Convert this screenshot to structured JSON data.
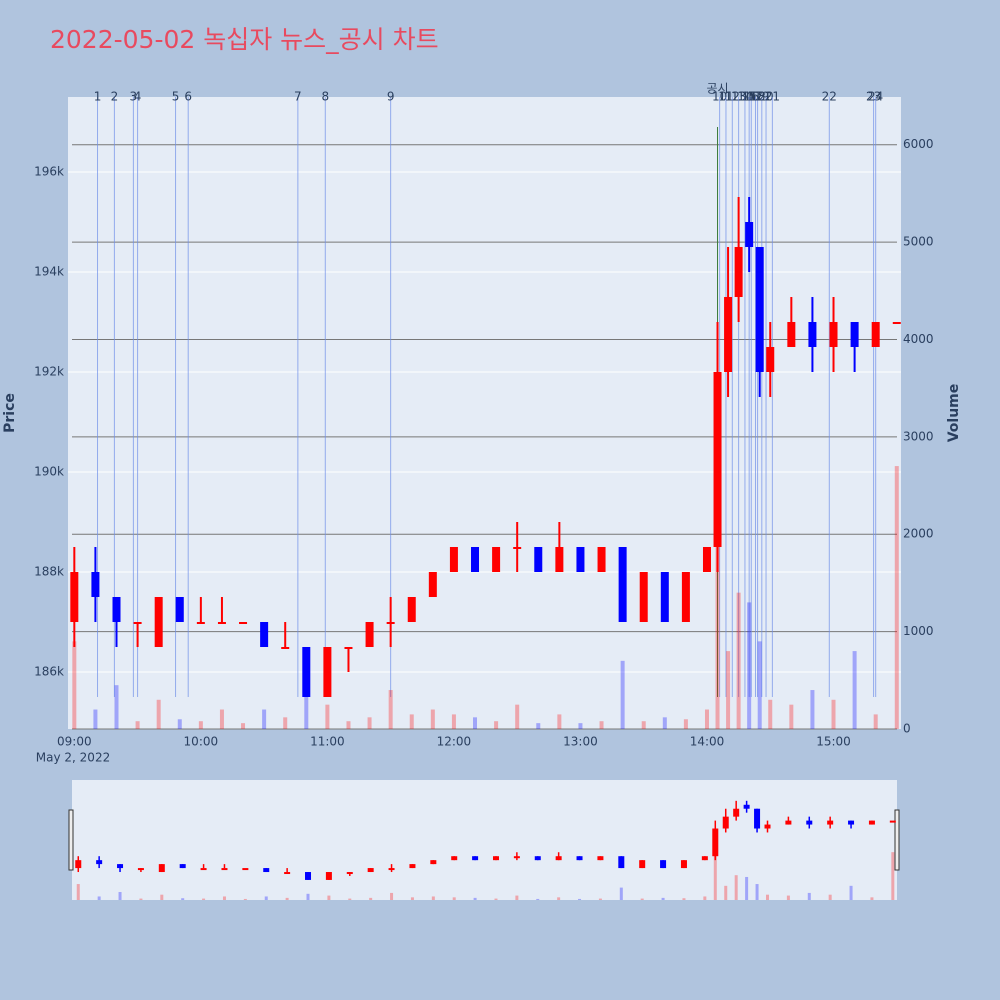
{
  "chart_data": {
    "type": "candlestick",
    "title": "2022-05-02 녹십자 뉴스_공시 차트",
    "y_label": "Price",
    "y2_label": "Volume",
    "x_date_label": "May 2, 2022",
    "increasing_color": "#ff0000",
    "decreasing_color": "#0000ff",
    "x": [
      "09:00",
      "09:10",
      "09:20",
      "09:30",
      "09:40",
      "09:50",
      "10:00",
      "10:10",
      "10:20",
      "10:30",
      "10:40",
      "10:50",
      "11:00",
      "11:10",
      "11:20",
      "11:30",
      "11:40",
      "11:50",
      "12:00",
      "12:10",
      "12:20",
      "12:30",
      "12:40",
      "12:50",
      "13:00",
      "13:10",
      "13:20",
      "13:30",
      "13:40",
      "13:50",
      "14:00",
      "14:05",
      "14:10",
      "14:15",
      "14:20",
      "14:25",
      "14:30",
      "14:40",
      "14:50",
      "15:00",
      "15:10",
      "15:20",
      "15:30"
    ],
    "open": [
      187000,
      188000,
      187500,
      187000,
      186500,
      187500,
      187000,
      187000,
      187000,
      187000,
      186500,
      186500,
      185500,
      186500,
      186500,
      187000,
      187000,
      187500,
      188000,
      188500,
      188000,
      188500,
      188500,
      188000,
      188500,
      188000,
      188500,
      187000,
      188000,
      187000,
      188000,
      188500,
      192000,
      193500,
      195000,
      194500,
      192000,
      192500,
      193000,
      192500,
      193000,
      192500,
      193000
    ],
    "high": [
      188500,
      188500,
      187500,
      187000,
      187500,
      187500,
      187500,
      187500,
      187000,
      187000,
      187000,
      186500,
      186500,
      186500,
      187000,
      187500,
      187500,
      188000,
      188500,
      188500,
      188500,
      189000,
      188500,
      189000,
      188500,
      188500,
      188500,
      188000,
      188000,
      188000,
      188500,
      193000,
      194500,
      195500,
      195500,
      194500,
      193000,
      193500,
      193500,
      193500,
      193000,
      193000,
      193000
    ],
    "low": [
      186500,
      187000,
      186500,
      186500,
      186500,
      187000,
      187000,
      187000,
      187000,
      186500,
      186500,
      185500,
      185500,
      186000,
      186500,
      186500,
      187000,
      187500,
      188000,
      188000,
      188000,
      188000,
      188000,
      188000,
      188000,
      188000,
      187000,
      187000,
      187000,
      187000,
      188000,
      188000,
      191500,
      193000,
      194000,
      191500,
      191500,
      192500,
      192000,
      192000,
      192000,
      192500,
      193000
    ],
    "close": [
      188000,
      187500,
      187000,
      187000,
      187500,
      187000,
      187000,
      187000,
      187000,
      186500,
      186500,
      185500,
      186500,
      186500,
      187000,
      187000,
      187500,
      188000,
      188500,
      188000,
      188500,
      188500,
      188000,
      188500,
      188000,
      188500,
      187000,
      188000,
      187000,
      188000,
      188500,
      192000,
      193500,
      194500,
      194500,
      192000,
      192500,
      193000,
      192500,
      193000,
      192500,
      193000,
      193000
    ],
    "volume": [
      900,
      200,
      450,
      80,
      300,
      100,
      80,
      200,
      60,
      200,
      120,
      350,
      250,
      80,
      120,
      400,
      150,
      200,
      150,
      120,
      80,
      250,
      60,
      150,
      60,
      80,
      700,
      80,
      120,
      100,
      200,
      2500,
      800,
      1400,
      1300,
      900,
      300,
      250,
      400,
      300,
      800,
      150,
      2700
    ],
    "xlim": [
      "08:57",
      "15:32"
    ],
    "xticks": [
      "09:00",
      "10:00",
      "11:00",
      "12:00",
      "13:00",
      "14:00",
      "15:00"
    ],
    "ylim": [
      184860,
      197500
    ],
    "yticks": [
      {
        "value": 186000,
        "label": "186k"
      },
      {
        "value": 188000,
        "label": "188k"
      },
      {
        "value": 190000,
        "label": "190k"
      },
      {
        "value": 192000,
        "label": "192k"
      },
      {
        "value": 194000,
        "label": "194k"
      },
      {
        "value": 196000,
        "label": "196k"
      }
    ],
    "y2lim": [
      0,
      6490
    ],
    "y2ticks": [
      0,
      1000,
      2000,
      3000,
      4000,
      5000,
      6000
    ],
    "disclosure": {
      "label": "공시",
      "x": "14:05"
    },
    "news": [
      {
        "label": "1",
        "x": "09:11"
      },
      {
        "label": "2",
        "x": "09:19"
      },
      {
        "label": "3",
        "x": "09:28"
      },
      {
        "label": "4",
        "x": "09:30"
      },
      {
        "label": "5",
        "x": "09:48"
      },
      {
        "label": "6",
        "x": "09:54"
      },
      {
        "label": "7",
        "x": "10:46"
      },
      {
        "label": "8",
        "x": "10:59"
      },
      {
        "label": "9",
        "x": "11:30"
      },
      {
        "label": "10",
        "x": "14:06"
      },
      {
        "label": "11",
        "x": "14:09"
      },
      {
        "label": "12",
        "x": "14:12"
      },
      {
        "label": "13",
        "x": "14:15"
      },
      {
        "label": "14",
        "x": "14:18"
      },
      {
        "label": "15",
        "x": "14:20"
      },
      {
        "label": "16",
        "x": "14:21"
      },
      {
        "label": "17",
        "x": "14:23"
      },
      {
        "label": "18",
        "x": "14:24"
      },
      {
        "label": "19",
        "x": "14:26"
      },
      {
        "label": "20",
        "x": "14:28"
      },
      {
        "label": "21",
        "x": "14:31"
      },
      {
        "label": "22",
        "x": "14:58"
      },
      {
        "label": "23",
        "x": "15:19"
      },
      {
        "label": "24",
        "x": "15:20"
      }
    ]
  }
}
